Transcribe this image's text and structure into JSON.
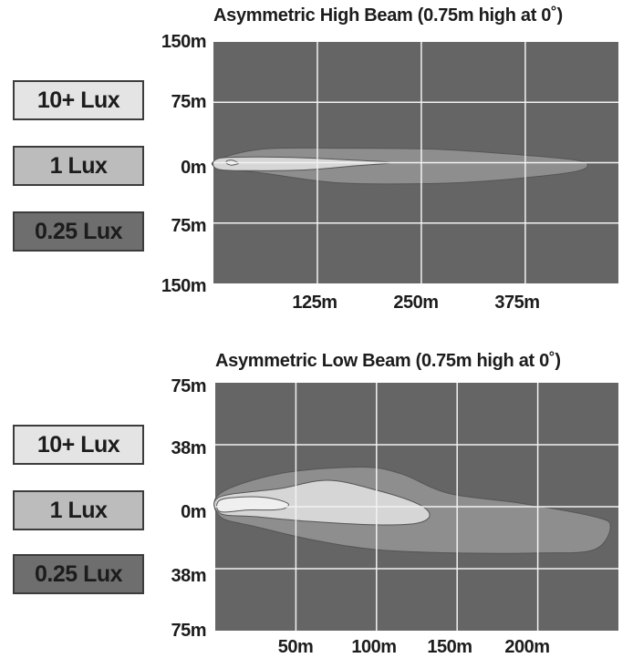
{
  "chart_data": [
    {
      "type": "area",
      "title": "Asymmetric High Beam (0.75m high at 0˚)",
      "xlabel": "",
      "ylabel": "",
      "x_unit": "m",
      "xlim": [
        0,
        487
      ],
      "ylim": [
        -150,
        150
      ],
      "x_ticks": [
        125,
        250,
        375
      ],
      "x_tick_labels": [
        "125m",
        "250m",
        "375m"
      ],
      "y_ticks": [
        150,
        75,
        0,
        -75,
        -150
      ],
      "y_tick_labels": [
        "150m",
        "75m",
        "0m",
        "75m",
        "150m"
      ],
      "grid": true,
      "legend": [
        {
          "label": "10+ Lux",
          "color": "#e4e4e4"
        },
        {
          "label": "1 Lux",
          "color": "#bcbcbc"
        },
        {
          "label": "0.25 Lux",
          "color": "#6e6e6e"
        }
      ],
      "zones": [
        {
          "name": "0.25 Lux",
          "color": "#8e8e8e",
          "outline": [
            [
              5,
              4
            ],
            [
              60,
              17
            ],
            [
              150,
              18
            ],
            [
              260,
              17
            ],
            [
              340,
              12
            ],
            [
              430,
              4
            ],
            [
              450,
              -3
            ],
            [
              430,
              -12
            ],
            [
              340,
              -22
            ],
            [
              260,
              -26
            ],
            [
              150,
              -25
            ],
            [
              60,
              -13
            ],
            [
              5,
              -6
            ]
          ]
        },
        {
          "name": "1 Lux",
          "color": "#d6d6d6",
          "outline": [
            [
              5,
              5
            ],
            [
              50,
              7
            ],
            [
              110,
              6
            ],
            [
              170,
              3
            ],
            [
              214,
              0
            ],
            [
              170,
              -4
            ],
            [
              110,
              -9
            ],
            [
              50,
              -10
            ],
            [
              5,
              -8
            ]
          ]
        },
        {
          "name": "10+ Lux",
          "color": "#efefef",
          "outline": [
            [
              16,
              2
            ],
            [
              22,
              3
            ],
            [
              28,
              1
            ],
            [
              30,
              -1
            ],
            [
              22,
              -3
            ],
            [
              16,
              -1
            ]
          ]
        }
      ]
    },
    {
      "type": "area",
      "title": "Asymmetric Low Beam (0.75m high at 0˚)",
      "xlabel": "",
      "ylabel": "",
      "x_unit": "m",
      "xlim": [
        0,
        250
      ],
      "ylim": [
        -75,
        75
      ],
      "x_ticks": [
        50,
        100,
        150,
        200
      ],
      "x_tick_labels": [
        "50m",
        "100m",
        "150m",
        "200m"
      ],
      "y_ticks": [
        75,
        38,
        0,
        -38,
        -75
      ],
      "y_tick_labels": [
        "75m",
        "38m",
        "0m",
        "38m",
        "75m"
      ],
      "grid": true,
      "legend": [
        {
          "label": "10+ Lux",
          "color": "#e4e4e4"
        },
        {
          "label": "1 Lux",
          "color": "#bcbcbc"
        },
        {
          "label": "0.25 Lux",
          "color": "#6e6e6e"
        }
      ],
      "zones": [
        {
          "name": "0.25 Lux",
          "color": "#8e8e8e",
          "outline": [
            [
              3,
              8
            ],
            [
              40,
              20
            ],
            [
              90,
              24
            ],
            [
              115,
              20
            ],
            [
              145,
              8
            ],
            [
              190,
              2
            ],
            [
              235,
              -6
            ],
            [
              245,
              -12
            ],
            [
              235,
              -26
            ],
            [
              200,
              -28
            ],
            [
              150,
              -28
            ],
            [
              100,
              -26
            ],
            [
              60,
              -20
            ],
            [
              25,
              -12
            ],
            [
              3,
              -6
            ]
          ]
        },
        {
          "name": "1 Lux",
          "color": "#d6d6d6",
          "outline": [
            [
              3,
              6
            ],
            [
              40,
              11
            ],
            [
              70,
              16
            ],
            [
              100,
              10
            ],
            [
              125,
              2
            ],
            [
              133,
              -5
            ],
            [
              125,
              -10
            ],
            [
              100,
              -11
            ],
            [
              60,
              -9
            ],
            [
              25,
              -6
            ],
            [
              3,
              -4
            ]
          ]
        },
        {
          "name": "10+ Lux",
          "color": "#efefef",
          "outline": [
            [
              3,
              4
            ],
            [
              20,
              6
            ],
            [
              35,
              5
            ],
            [
              45,
              2
            ],
            [
              43,
              -1
            ],
            [
              35,
              -2
            ],
            [
              20,
              -2
            ],
            [
              3,
              -3
            ]
          ]
        }
      ]
    }
  ]
}
